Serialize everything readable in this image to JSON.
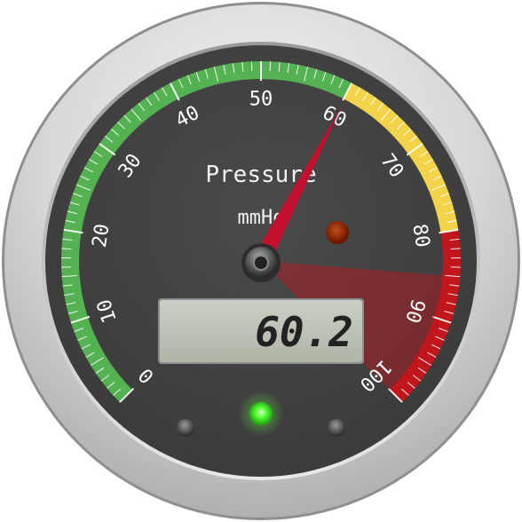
{
  "gauge": {
    "title": "Pressure",
    "unit": "mmHg",
    "min": 0,
    "max": 100,
    "value": 60.2,
    "lcd_value": "60.2",
    "threshold": 100,
    "scale_labels": [
      "0",
      "10",
      "20",
      "30",
      "40",
      "50",
      "60",
      "70",
      "80",
      "90",
      "100"
    ],
    "sections": [
      {
        "from": 0,
        "to": 60,
        "color": "#55b252"
      },
      {
        "from": 60,
        "to": 80,
        "color": "#f2d34a"
      },
      {
        "from": 80,
        "to": 100,
        "color": "#c0161c"
      }
    ],
    "area": {
      "from": 85,
      "to": 100,
      "color": "#c0161c"
    },
    "led_color": "#44ff22",
    "user_led_color": "#8a1a00",
    "pointer_color": "#c3102f"
  }
}
